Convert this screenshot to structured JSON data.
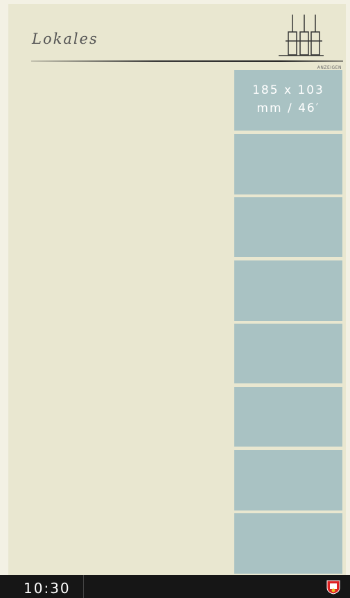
{
  "header": {
    "title": "Lokales",
    "label": "ANZEIGEN"
  },
  "ads": [
    {
      "lines": [
        "185 x 103",
        "mm / 46′"
      ]
    }
  ],
  "footer": {
    "time": "10:30"
  }
}
